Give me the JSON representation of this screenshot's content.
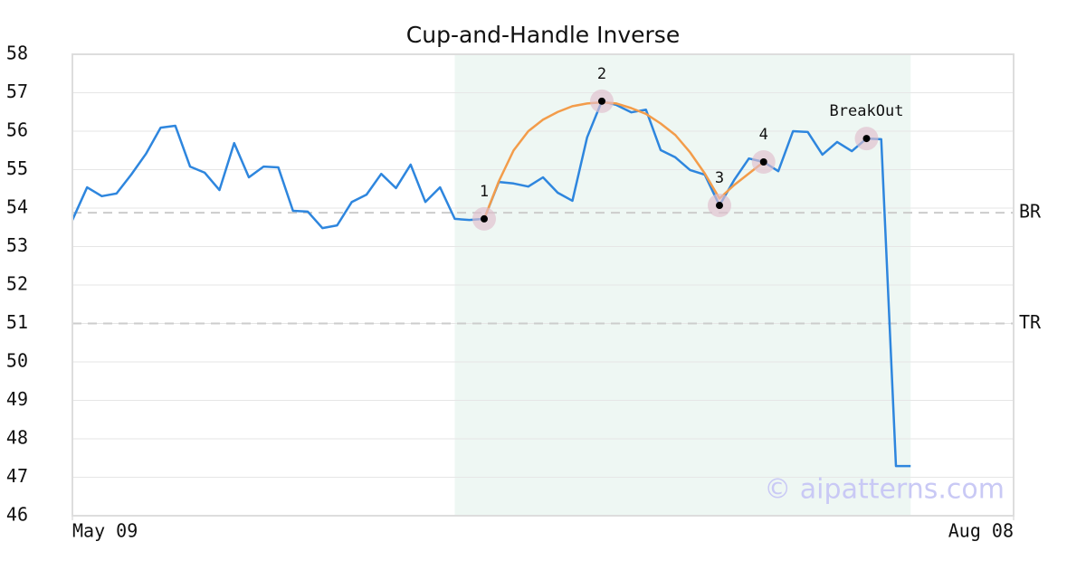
{
  "chart_data": {
    "type": "line",
    "title": "Cup-and-Handle Inverse",
    "watermark": "© aipatterns.com",
    "x": [
      0,
      1,
      2,
      3,
      4,
      5,
      6,
      7,
      8,
      9,
      10,
      11,
      12,
      13,
      14,
      15,
      16,
      17,
      18,
      19,
      20,
      21,
      22,
      23,
      24,
      25,
      26,
      27,
      28,
      29,
      30,
      31,
      32,
      33,
      34,
      35,
      36,
      37,
      38,
      39,
      40,
      41,
      42,
      43,
      44,
      45,
      46,
      47,
      48,
      49,
      50,
      51,
      52,
      53,
      54,
      55,
      56,
      57
    ],
    "xlim": [
      0,
      64
    ],
    "xticks": [
      {
        "value": 0,
        "label": "May 09"
      },
      {
        "value": 64,
        "label": "Aug 08"
      }
    ],
    "ylim": [
      46,
      58
    ],
    "yticks": [
      46,
      47,
      48,
      49,
      50,
      51,
      52,
      53,
      54,
      55,
      56,
      57,
      58
    ],
    "grid": true,
    "highlight": [
      26,
      57
    ],
    "series": [
      {
        "color": "#2e86de",
        "values": [
          53.69,
          54.54,
          54.31,
          54.38,
          54.87,
          55.41,
          56.09,
          56.14,
          55.08,
          54.92,
          54.47,
          55.69,
          54.8,
          55.08,
          55.06,
          53.93,
          53.91,
          53.48,
          53.55,
          54.16,
          54.35,
          54.89,
          54.52,
          55.13,
          54.16,
          54.54,
          53.72,
          53.69,
          53.72,
          54.68,
          54.64,
          54.56,
          54.8,
          54.4,
          54.19,
          55.84,
          56.78,
          56.68,
          56.49,
          56.56,
          55.51,
          55.32,
          54.99,
          54.87,
          54.07,
          54.73,
          55.29,
          55.2,
          54.96,
          56.0,
          55.98,
          55.39,
          55.72,
          55.48,
          55.81,
          55.79,
          47.29,
          47.29
        ]
      },
      {
        "color": "#f39c4a",
        "values": [
          null,
          null,
          null,
          null,
          null,
          null,
          null,
          null,
          null,
          null,
          null,
          null,
          null,
          null,
          null,
          null,
          null,
          null,
          null,
          null,
          null,
          null,
          null,
          null,
          null,
          null,
          null,
          null,
          53.72,
          54.7,
          55.5,
          56.0,
          56.3,
          56.5,
          56.65,
          56.72,
          56.75,
          56.72,
          56.6,
          56.45,
          56.2,
          55.9,
          55.45,
          54.9,
          54.25,
          54.6,
          54.9,
          55.2,
          null,
          null,
          null,
          null,
          null,
          null,
          null,
          null,
          null,
          null
        ]
      }
    ],
    "hlines": [
      {
        "label": "BR",
        "value": 53.88
      },
      {
        "label": "TR",
        "value": 51.0
      }
    ],
    "annotations": [
      {
        "label": "1",
        "x": 28,
        "y": 53.72
      },
      {
        "label": "2",
        "x": 36,
        "y": 56.78
      },
      {
        "label": "3",
        "x": 44,
        "y": 54.07
      },
      {
        "label": "4",
        "x": 47,
        "y": 55.2
      },
      {
        "label": "BreakOut",
        "x": 54,
        "y": 55.81
      }
    ]
  }
}
